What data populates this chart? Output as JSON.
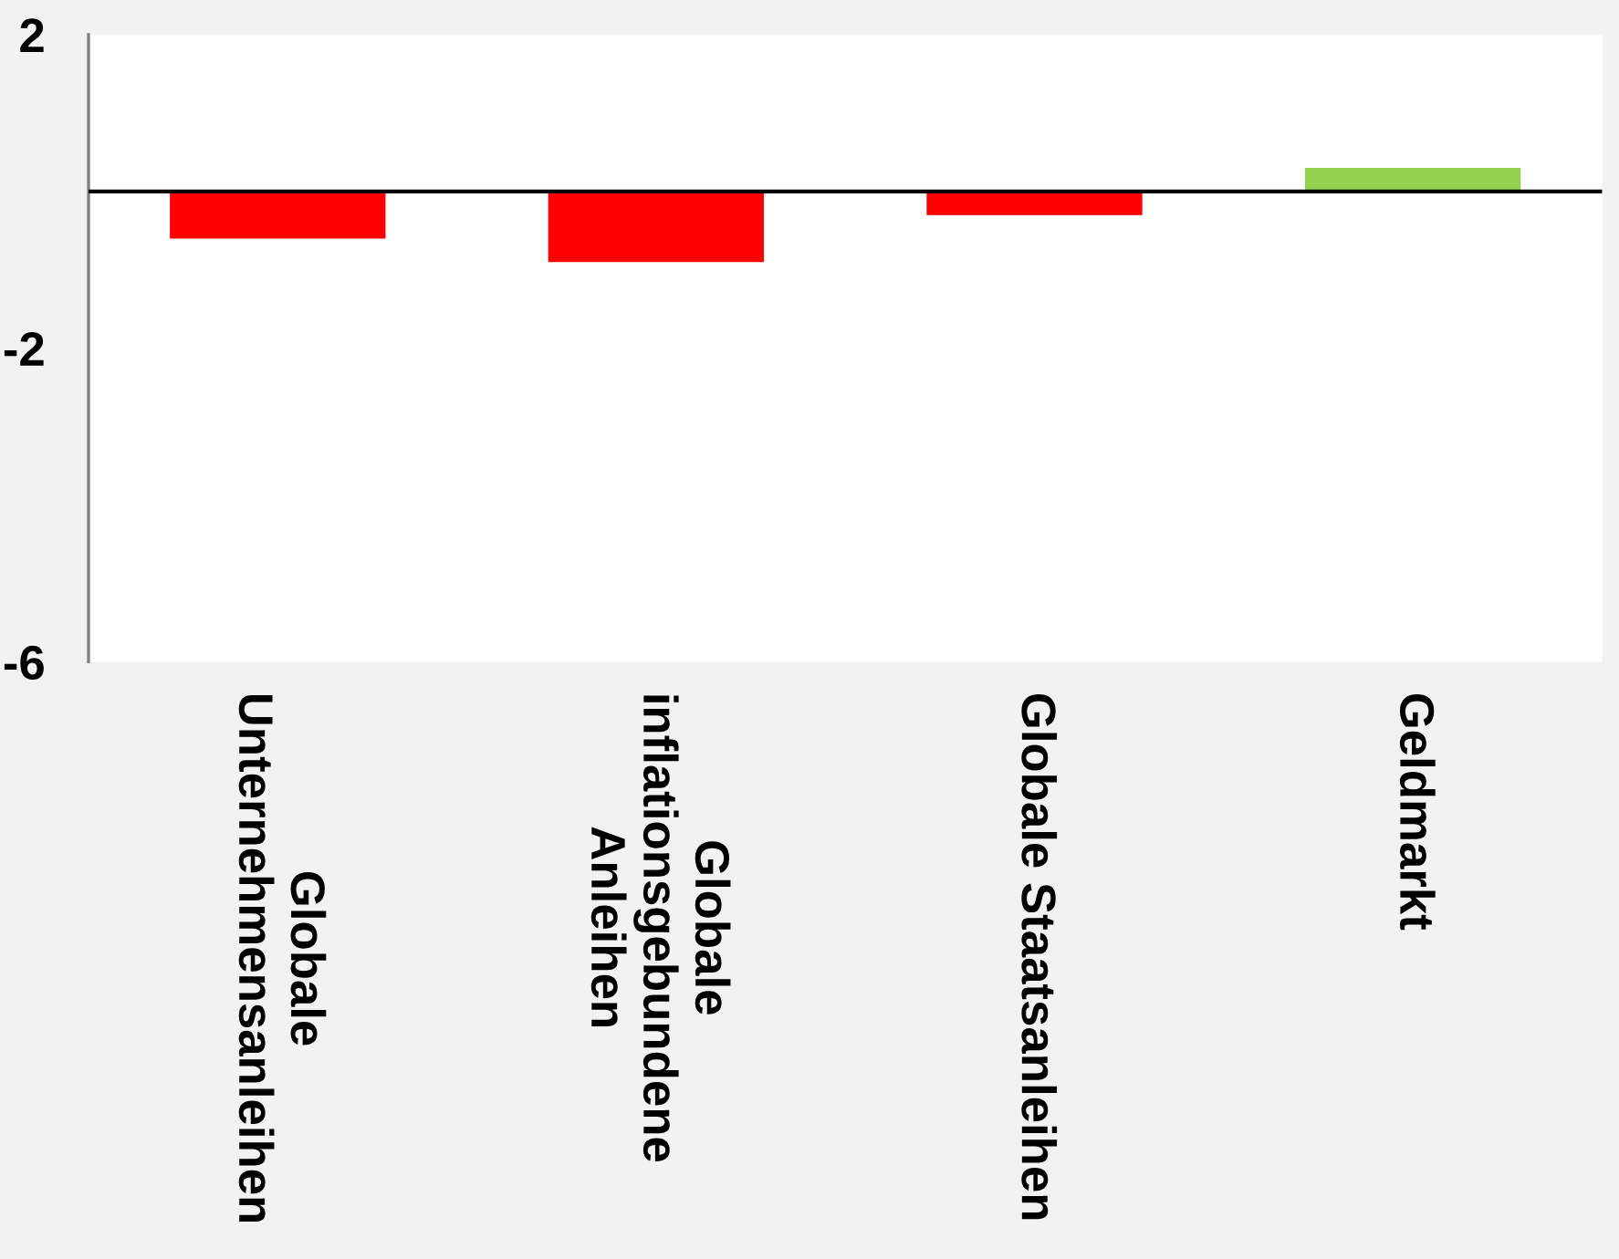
{
  "chart_data": {
    "type": "bar",
    "categories": [
      "Globale\nUnternehmensanleihen",
      "Globale\ninflationsgebundene\nAnleihen",
      "Globale Staatsanleihen",
      "Geldmarkt"
    ],
    "values": [
      -0.6,
      -0.9,
      -0.3,
      0.3
    ],
    "colors": [
      "#ff0000",
      "#ff0000",
      "#ff0000",
      "#92d050"
    ],
    "ylim": [
      -6,
      2
    ],
    "yticks": [
      -6,
      -2,
      2
    ]
  }
}
